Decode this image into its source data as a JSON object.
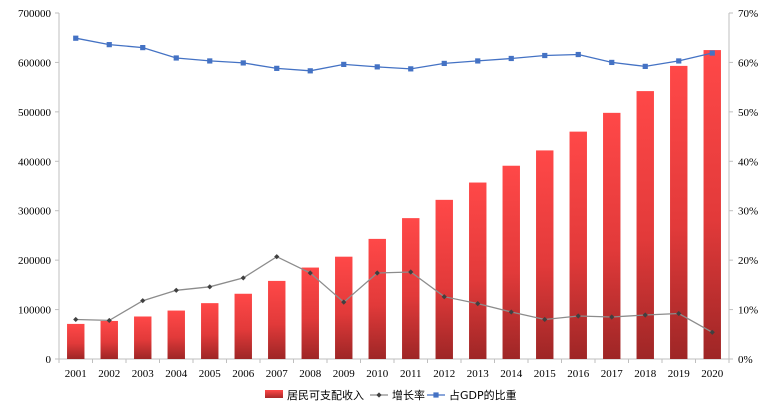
{
  "chart_data": {
    "type": "bar",
    "categories": [
      "2001",
      "2002",
      "2003",
      "2004",
      "2005",
      "2006",
      "2007",
      "2008",
      "2009",
      "2010",
      "2011",
      "2012",
      "2013",
      "2014",
      "2015",
      "2016",
      "2017",
      "2018",
      "2019",
      "2020"
    ],
    "series": [
      {
        "name": "居民可支配收入",
        "type": "bar",
        "axis": "left",
        "color": "#ff4444",
        "values": [
          71000,
          77000,
          86000,
          98000,
          113000,
          132000,
          158000,
          185000,
          207000,
          243000,
          285000,
          322000,
          357000,
          391000,
          422000,
          460000,
          498000,
          542000,
          593000,
          625000
        ]
      },
      {
        "name": "增长率",
        "type": "line",
        "axis": "right",
        "color": "#8c8c8c",
        "values": [
          0.08,
          0.078,
          0.118,
          0.139,
          0.146,
          0.164,
          0.207,
          0.174,
          0.115,
          0.174,
          0.176,
          0.126,
          0.112,
          0.095,
          0.08,
          0.087,
          0.085,
          0.089,
          0.092,
          0.054
        ]
      },
      {
        "name": "占GDP的比重",
        "type": "line",
        "axis": "right",
        "color": "#4472c4",
        "values": [
          0.649,
          0.636,
          0.63,
          0.609,
          0.603,
          0.599,
          0.588,
          0.583,
          0.596,
          0.591,
          0.587,
          0.598,
          0.603,
          0.608,
          0.614,
          0.616,
          0.6,
          0.592,
          0.603,
          0.619
        ]
      }
    ],
    "left_axis": {
      "min": 0,
      "max": 700000,
      "ticks": [
        0,
        100000,
        200000,
        300000,
        400000,
        500000,
        600000,
        700000
      ],
      "tick_labels": [
        "0",
        "100000",
        "200000",
        "300000",
        "400000",
        "500000",
        "600000",
        "700000"
      ]
    },
    "right_axis": {
      "min": 0,
      "max": 0.7,
      "ticks": [
        0,
        0.1,
        0.2,
        0.3,
        0.4,
        0.5,
        0.6,
        0.7
      ],
      "tick_labels": [
        "0%",
        "10%",
        "20%",
        "30%",
        "40%",
        "50%",
        "60%",
        "70%"
      ]
    },
    "title": "",
    "xlabel": "",
    "ylabel": "",
    "grid": false,
    "legend": {
      "position": "bottom",
      "entries": [
        "居民可支配收入",
        "增长率",
        "占GDP的比重"
      ]
    }
  }
}
